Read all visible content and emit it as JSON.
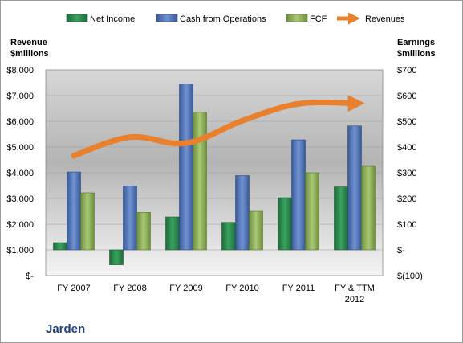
{
  "company": "Jarden",
  "colors": {
    "net_income": "#2e8b4e",
    "cash_from_operations": "#4f74b8",
    "fcf": "#8fb05a",
    "revenues": "#e8802e"
  },
  "chart_data": {
    "type": "bar",
    "categories": [
      "FY 2007",
      "FY 2008",
      "FY 2009",
      "FY 2010",
      "FY 2011",
      "FY & TTM 2012"
    ],
    "left_axis": {
      "title_line1": "Revenue",
      "title_line2": "$millions",
      "ylim": [
        0,
        8000
      ],
      "tick_values": [
        0,
        1000,
        2000,
        3000,
        4000,
        5000,
        6000,
        7000,
        8000
      ],
      "tick_labels": [
        "$-",
        "$1,000",
        "$2,000",
        "$3,000",
        "$4,000",
        "$5,000",
        "$6,000",
        "$7,000",
        "$8,000"
      ]
    },
    "right_axis": {
      "title_line1": "Earnings",
      "title_line2": "$millions",
      "ylim": [
        -100,
        700
      ],
      "tick_values": [
        -100,
        0,
        100,
        200,
        300,
        400,
        500,
        600,
        700
      ],
      "tick_labels": [
        "$(100)",
        "$-",
        "$100",
        "$200",
        "$300",
        "$400",
        "$500",
        "$600",
        "$700"
      ]
    },
    "series": [
      {
        "name": "Net Income",
        "axis": "right",
        "kind": "bar",
        "values": [
          28,
          -58,
          128,
          107,
          203,
          245
        ]
      },
      {
        "name": "Cash from Operations",
        "axis": "right",
        "kind": "bar",
        "values": [
          303,
          249,
          645,
          289,
          428,
          482
        ]
      },
      {
        "name": "FCF",
        "axis": "right",
        "kind": "bar",
        "values": [
          222,
          146,
          535,
          150,
          300,
          325
        ]
      },
      {
        "name": "Revenues",
        "axis": "left",
        "kind": "line",
        "values": [
          4660,
          5383,
          5153,
          6022,
          6680,
          6700
        ]
      }
    ]
  }
}
